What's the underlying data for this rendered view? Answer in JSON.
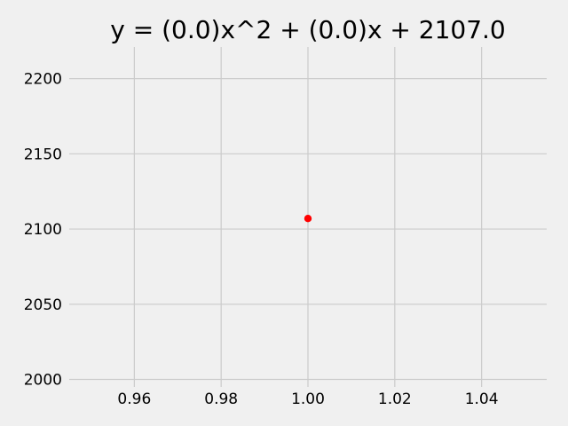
{
  "chart_data": {
    "type": "scatter",
    "title": "y = (0.0)x^2 + (0.0)x + 2107.0",
    "xlabel": "",
    "ylabel": "",
    "xlim": [
      0.945,
      1.055
    ],
    "ylim": [
      1995,
      2221
    ],
    "x_ticks": [
      0.96,
      0.98,
      1.0,
      1.02,
      1.04
    ],
    "x_tick_labels": [
      "0.96",
      "0.98",
      "1.00",
      "1.02",
      "1.04"
    ],
    "y_ticks": [
      2000,
      2050,
      2100,
      2150,
      2200
    ],
    "y_tick_labels": [
      "2000",
      "2050",
      "2100",
      "2150",
      "2200"
    ],
    "grid": true,
    "background_color": "#f0f0f0",
    "grid_color": "#cbcbcb",
    "series": [
      {
        "x": [
          1.0
        ],
        "y": [
          2107.0
        ],
        "color": "#ff0000"
      }
    ]
  }
}
